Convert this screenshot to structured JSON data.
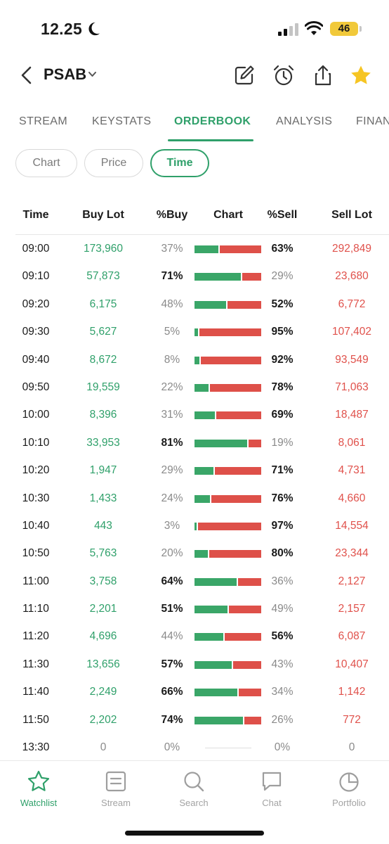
{
  "status_bar": {
    "time": "12.25",
    "battery": "46"
  },
  "header": {
    "ticker": "PSAB"
  },
  "tabs": [
    {
      "label": "STREAM"
    },
    {
      "label": "KEYSTATS"
    },
    {
      "label": "ORDERBOOK"
    },
    {
      "label": "ANALYSIS"
    },
    {
      "label": "FINAN"
    }
  ],
  "active_tab": "ORDERBOOK",
  "filters": [
    {
      "label": "Chart"
    },
    {
      "label": "Price"
    },
    {
      "label": "Time"
    }
  ],
  "active_filter": "Time",
  "table": {
    "headers": {
      "time": "Time",
      "buy_lot": "Buy Lot",
      "pct_buy": "%Buy",
      "chart": "Chart",
      "pct_sell": "%Sell",
      "sell_lot": "Sell Lot"
    },
    "rows": [
      {
        "time": "09:00",
        "buy_lot": "173,960",
        "pct_buy": "37%",
        "pct_sell": "63%",
        "sell_lot": "292,849",
        "buy_ratio": 0.37
      },
      {
        "time": "09:10",
        "buy_lot": "57,873",
        "pct_buy": "71%",
        "pct_sell": "29%",
        "sell_lot": "23,680",
        "buy_ratio": 0.71
      },
      {
        "time": "09:20",
        "buy_lot": "6,175",
        "pct_buy": "48%",
        "pct_sell": "52%",
        "sell_lot": "6,772",
        "buy_ratio": 0.48
      },
      {
        "time": "09:30",
        "buy_lot": "5,627",
        "pct_buy": "5%",
        "pct_sell": "95%",
        "sell_lot": "107,402",
        "buy_ratio": 0.05
      },
      {
        "time": "09:40",
        "buy_lot": "8,672",
        "pct_buy": "8%",
        "pct_sell": "92%",
        "sell_lot": "93,549",
        "buy_ratio": 0.08
      },
      {
        "time": "09:50",
        "buy_lot": "19,559",
        "pct_buy": "22%",
        "pct_sell": "78%",
        "sell_lot": "71,063",
        "buy_ratio": 0.22
      },
      {
        "time": "10:00",
        "buy_lot": "8,396",
        "pct_buy": "31%",
        "pct_sell": "69%",
        "sell_lot": "18,487",
        "buy_ratio": 0.31
      },
      {
        "time": "10:10",
        "buy_lot": "33,953",
        "pct_buy": "81%",
        "pct_sell": "19%",
        "sell_lot": "8,061",
        "buy_ratio": 0.81
      },
      {
        "time": "10:20",
        "buy_lot": "1,947",
        "pct_buy": "29%",
        "pct_sell": "71%",
        "sell_lot": "4,731",
        "buy_ratio": 0.29
      },
      {
        "time": "10:30",
        "buy_lot": "1,433",
        "pct_buy": "24%",
        "pct_sell": "76%",
        "sell_lot": "4,660",
        "buy_ratio": 0.24
      },
      {
        "time": "10:40",
        "buy_lot": "443",
        "pct_buy": "3%",
        "pct_sell": "97%",
        "sell_lot": "14,554",
        "buy_ratio": 0.03
      },
      {
        "time": "10:50",
        "buy_lot": "5,763",
        "pct_buy": "20%",
        "pct_sell": "80%",
        "sell_lot": "23,344",
        "buy_ratio": 0.2
      },
      {
        "time": "11:00",
        "buy_lot": "3,758",
        "pct_buy": "64%",
        "pct_sell": "36%",
        "sell_lot": "2,127",
        "buy_ratio": 0.64
      },
      {
        "time": "11:10",
        "buy_lot": "2,201",
        "pct_buy": "51%",
        "pct_sell": "49%",
        "sell_lot": "2,157",
        "buy_ratio": 0.51
      },
      {
        "time": "11:20",
        "buy_lot": "4,696",
        "pct_buy": "44%",
        "pct_sell": "56%",
        "sell_lot": "6,087",
        "buy_ratio": 0.44
      },
      {
        "time": "11:30",
        "buy_lot": "13,656",
        "pct_buy": "57%",
        "pct_sell": "43%",
        "sell_lot": "10,407",
        "buy_ratio": 0.57
      },
      {
        "time": "11:40",
        "buy_lot": "2,249",
        "pct_buy": "66%",
        "pct_sell": "34%",
        "sell_lot": "1,142",
        "buy_ratio": 0.66
      },
      {
        "time": "11:50",
        "buy_lot": "2,202",
        "pct_buy": "74%",
        "pct_sell": "26%",
        "sell_lot": "772",
        "buy_ratio": 0.74
      },
      {
        "time": "13:30",
        "buy_lot": "0",
        "pct_buy": "0%",
        "pct_sell": "0%",
        "sell_lot": "0",
        "buy_ratio": null
      }
    ]
  },
  "bottom_nav": [
    {
      "label": "Watchlist",
      "icon": "star-outline-icon"
    },
    {
      "label": "Stream",
      "icon": "stream-icon"
    },
    {
      "label": "Search",
      "icon": "search-icon"
    },
    {
      "label": "Chat",
      "icon": "chat-icon"
    },
    {
      "label": "Portfolio",
      "icon": "pie-chart-icon"
    }
  ],
  "active_nav": "Watchlist",
  "colors": {
    "accent": "#2fa06a",
    "buy": "#3aa668",
    "sell": "#de5049",
    "star": "#f6c523",
    "battery": "#f1c93a"
  }
}
